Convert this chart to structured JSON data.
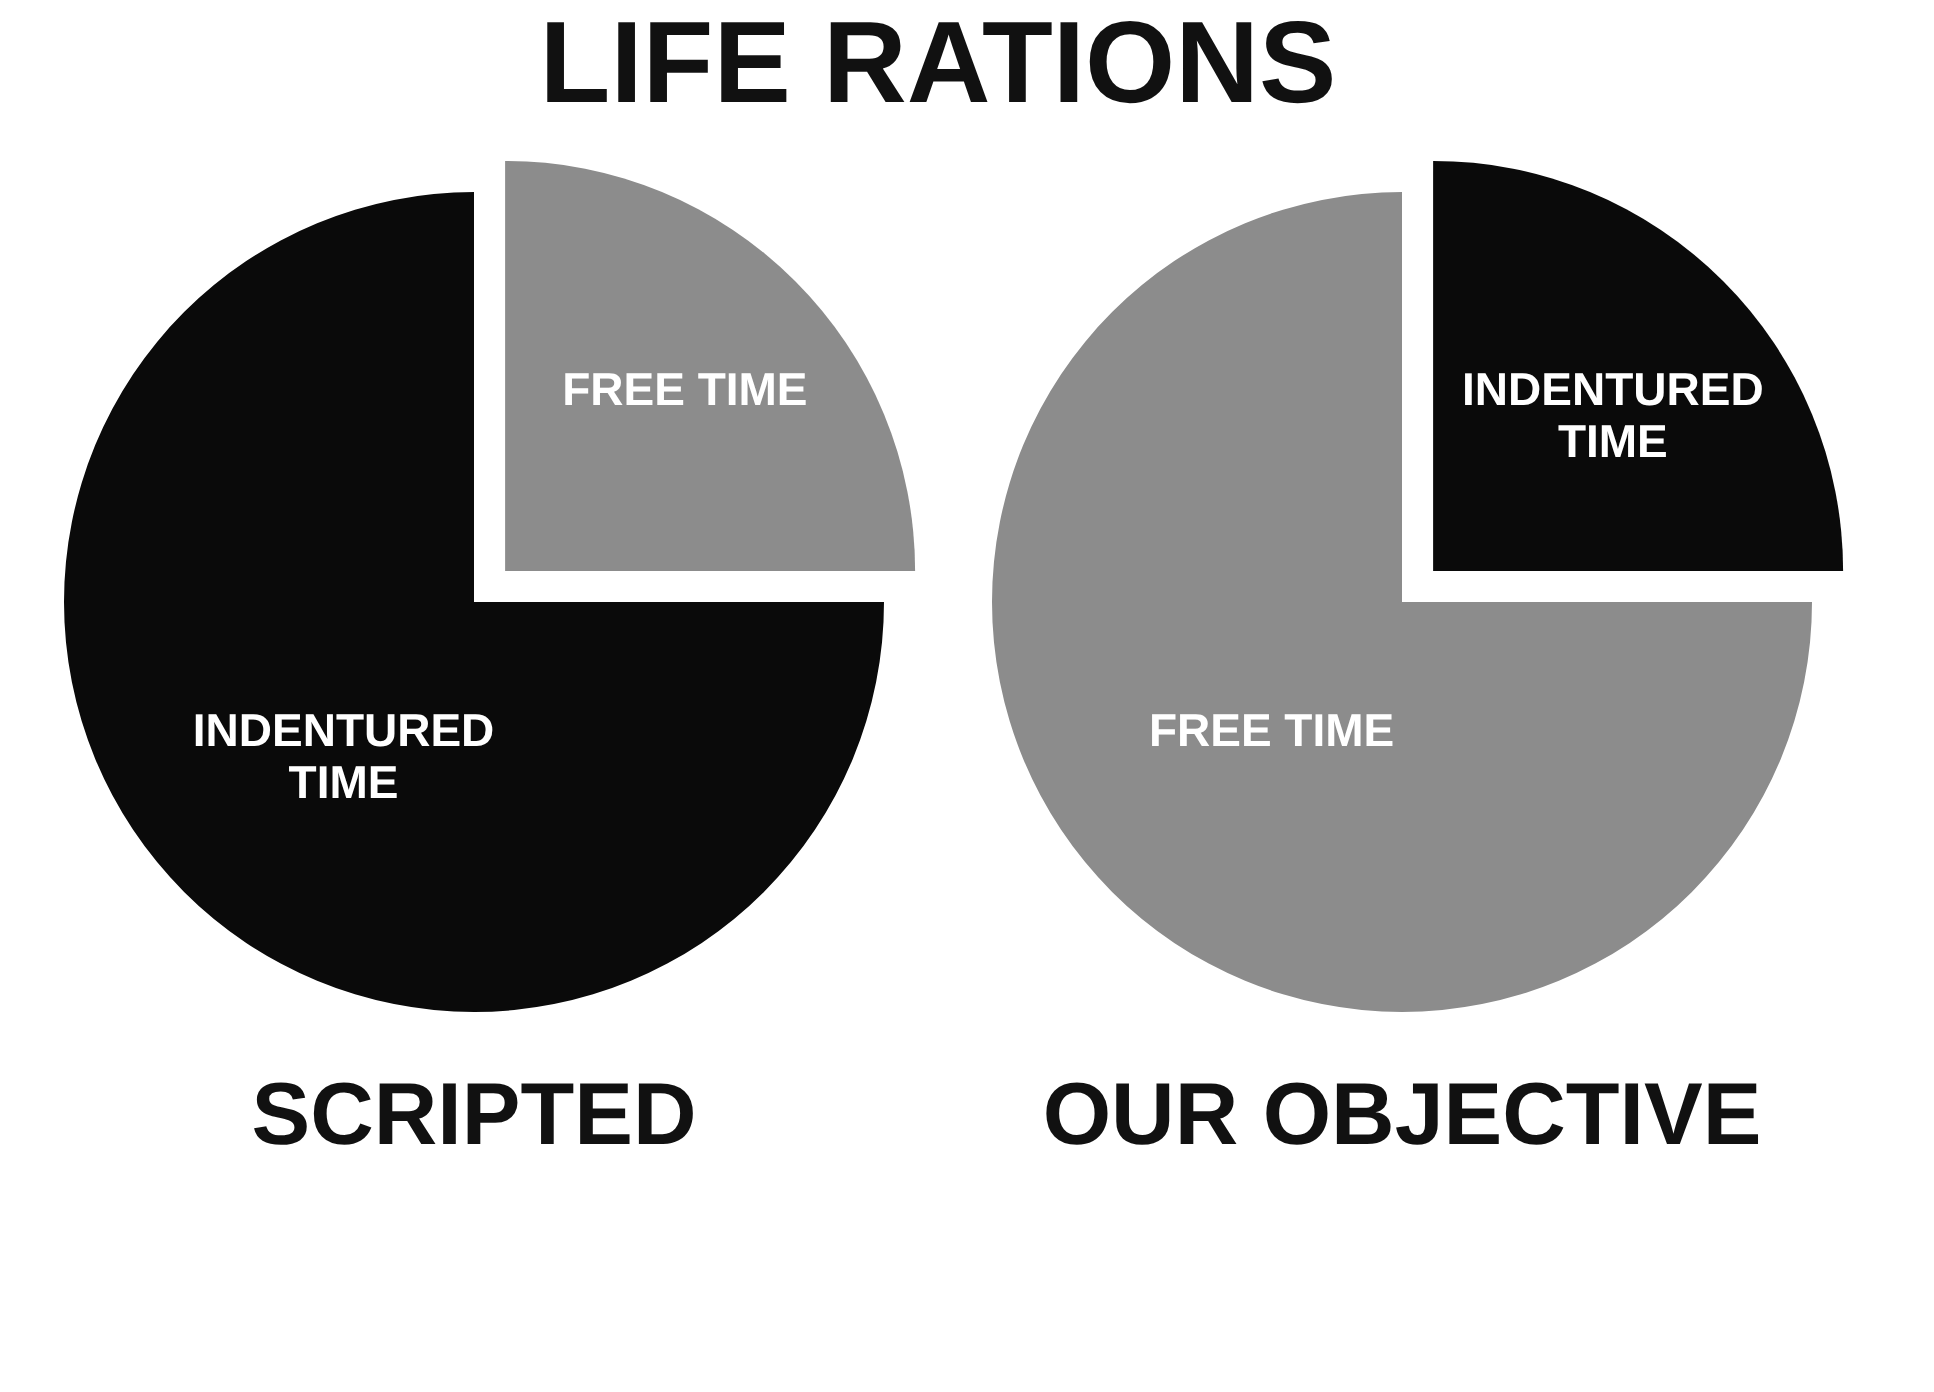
{
  "chart_data": [
    {
      "type": "pie",
      "title": "SCRIPTED",
      "annotations": [
        "LIFE RATIONS"
      ],
      "categories": [
        "FREE TIME",
        "INDENTURED TIME"
      ],
      "values": [
        25,
        75
      ],
      "colors": [
        "#8c8c8c",
        "#0a0a0a"
      ]
    },
    {
      "type": "pie",
      "title": "OUR OBJECTIVE",
      "categories": [
        "INDENTURED TIME",
        "FREE TIME"
      ],
      "values": [
        25,
        75
      ],
      "colors": [
        "#0a0a0a",
        "#8c8c8c"
      ]
    }
  ]
}
